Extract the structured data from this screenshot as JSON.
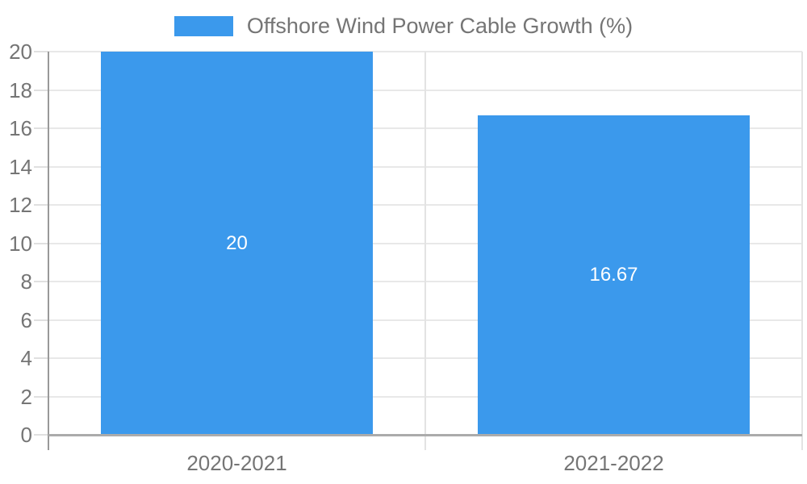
{
  "chart_data": {
    "type": "bar",
    "title": "Offshore Wind Power Cable Growth (%)",
    "categories": [
      "2020-2021",
      "2021-2022"
    ],
    "values": [
      20,
      16.67
    ],
    "value_labels": [
      "20",
      "16.67"
    ],
    "xlabel": "",
    "ylabel": "",
    "ylim": [
      0,
      20
    ],
    "ytick_step": 2,
    "yticks": [
      0,
      2,
      4,
      6,
      8,
      10,
      12,
      14,
      16,
      18,
      20
    ],
    "grid": true,
    "legend_position": "top",
    "legend_entries": [
      "Offshore Wind Power Cable Growth (%)"
    ]
  },
  "colors": {
    "bar": "#3B99EC",
    "value_label": "#FFFFFF",
    "axis_text": "#757575",
    "legend_text": "#757575",
    "gridline": "#E8E8E8",
    "separator": "#E3E3E3",
    "tick": "#E0E0E0",
    "y_axis_line": "#999999",
    "baseline": "#ABABAB",
    "background": "#FFFFFF"
  }
}
